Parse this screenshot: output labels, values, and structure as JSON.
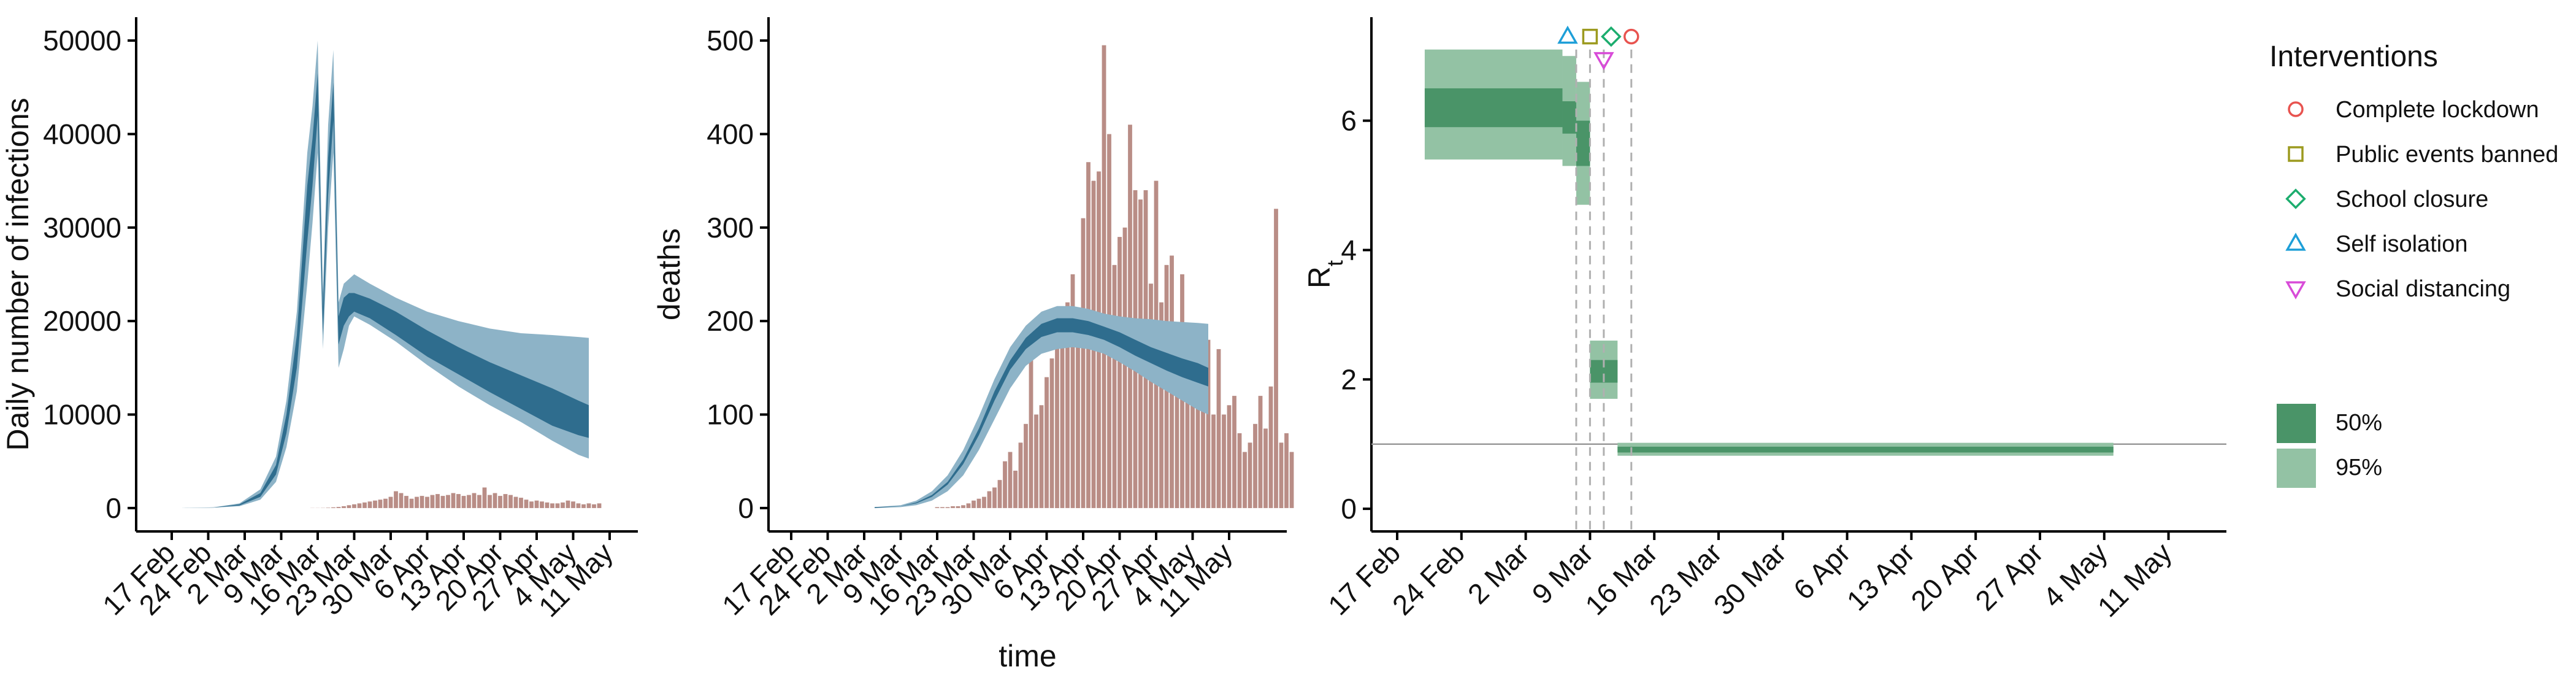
{
  "colors": {
    "infection_dark": "#2f6d8e",
    "infection_light": "#8db3c7",
    "bar": "#b98d86",
    "rt_dark": "#4a9468",
    "rt_light": "#93c2a4",
    "lockdown": "#e8534f",
    "events": "#9c9a1f",
    "school": "#1cad6e",
    "self": "#1e9fd8",
    "social": "#d84bd8",
    "axis": "#000000",
    "vline": "#b0b0b0",
    "hline": "#9a9a9a"
  },
  "chart_data": [
    {
      "type": "area",
      "ylabel": "Daily number of infections",
      "xlabel": "",
      "x_ticks": [
        "17 Feb",
        "24 Feb",
        "2 Mar",
        "9 Mar",
        "16 Mar",
        "23 Mar",
        "30 Mar",
        "6 Apr",
        "13 Apr",
        "20 Apr",
        "27 Apr",
        "4 May",
        "11 May"
      ],
      "y_ticks": [
        0,
        10000,
        20000,
        30000,
        40000,
        50000
      ],
      "ylim": [
        -2500,
        52500
      ],
      "x_start_day": 17,
      "series_band95": {
        "days": [
          19,
          25,
          30,
          34,
          37,
          39,
          41,
          43,
          44,
          45,
          46,
          47,
          48,
          49,
          50,
          51,
          52,
          55,
          60,
          66,
          72,
          78,
          84,
          90,
          95,
          97
        ],
        "lo": [
          10,
          40,
          200,
          900,
          2800,
          6500,
          12500,
          24000,
          30500,
          38000,
          17000,
          30000,
          38000,
          15000,
          17000,
          19500,
          20500,
          19600,
          17800,
          15300,
          13000,
          11000,
          9200,
          7200,
          5700,
          5300
        ],
        "hi": [
          20,
          80,
          500,
          2000,
          5500,
          11500,
          21000,
          38000,
          43000,
          50000,
          23000,
          41000,
          49000,
          22000,
          24000,
          24500,
          25000,
          24000,
          22500,
          21000,
          20000,
          19200,
          18700,
          18500,
          18300,
          18200
        ]
      },
      "series_band50": {
        "days": [
          19,
          25,
          30,
          34,
          37,
          39,
          41,
          43,
          44,
          45,
          46,
          47,
          48,
          49,
          50,
          51,
          52,
          55,
          60,
          66,
          72,
          78,
          84,
          90,
          95,
          97
        ],
        "lo": [
          12,
          50,
          280,
          1200,
          3600,
          8000,
          15000,
          28500,
          34500,
          42000,
          18500,
          33500,
          41500,
          17500,
          19500,
          20500,
          21000,
          20300,
          18500,
          16200,
          14300,
          12400,
          10600,
          8800,
          7800,
          7500
        ],
        "hi": [
          16,
          65,
          400,
          1600,
          4600,
          10000,
          18500,
          34500,
          39500,
          46500,
          21500,
          37500,
          45500,
          20500,
          22500,
          23000,
          23000,
          22400,
          21000,
          19000,
          17200,
          15600,
          14200,
          12800,
          11500,
          11000
        ]
      },
      "bars": [
        0,
        0,
        0,
        0,
        0,
        0,
        0,
        0,
        0,
        0,
        0,
        0,
        0,
        0,
        0,
        0,
        0,
        0,
        0,
        0,
        0,
        0,
        0,
        0,
        0,
        10,
        10,
        20,
        40,
        80,
        120,
        200,
        300,
        400,
        500,
        600,
        700,
        800,
        900,
        1000,
        1200,
        1800,
        1600,
        1300,
        1000,
        1200,
        1300,
        1200,
        1400,
        1500,
        1300,
        1400,
        1600,
        1500,
        1300,
        1400,
        1600,
        1400,
        2200,
        1400,
        1600,
        1300,
        1500,
        1400,
        1200,
        1100,
        900,
        700,
        800,
        700,
        600,
        500,
        500,
        600,
        800,
        700,
        500,
        400,
        500,
        400,
        500
      ],
      "bar_start_day": 19
    },
    {
      "type": "area",
      "ylabel": "deaths",
      "xlabel": "time",
      "x_ticks": [
        "17 Feb",
        "24 Feb",
        "2 Mar",
        "9 Mar",
        "16 Mar",
        "23 Mar",
        "30 Mar",
        "6 Apr",
        "13 Apr",
        "20 Apr",
        "27 Apr",
        "4 May",
        "11 May"
      ],
      "y_ticks": [
        0,
        100,
        200,
        300,
        400,
        500
      ],
      "ylim": [
        -25,
        525
      ],
      "x_start_day": 17,
      "series_band95": {
        "days": [
          33,
          38,
          41,
          44,
          47,
          50,
          53,
          56,
          59,
          62,
          65,
          68,
          71,
          74,
          77,
          80,
          83,
          86,
          89,
          92,
          95,
          97
        ],
        "lo": [
          0,
          1,
          3,
          8,
          18,
          35,
          62,
          95,
          128,
          152,
          165,
          170,
          172,
          170,
          165,
          156,
          146,
          135,
          125,
          115,
          105,
          100
        ],
        "hi": [
          1,
          3,
          8,
          18,
          35,
          62,
          98,
          138,
          172,
          195,
          210,
          216,
          216,
          213,
          208,
          205,
          203,
          202,
          200,
          199,
          198,
          197
        ]
      },
      "series_band50": {
        "days": [
          33,
          38,
          41,
          44,
          47,
          50,
          53,
          56,
          59,
          62,
          65,
          68,
          71,
          74,
          77,
          80,
          83,
          86,
          89,
          92,
          95,
          97
        ],
        "lo": [
          0,
          2,
          5,
          12,
          25,
          47,
          78,
          115,
          148,
          170,
          183,
          188,
          188,
          185,
          180,
          172,
          163,
          155,
          147,
          140,
          134,
          130
        ],
        "hi": [
          1,
          2,
          6,
          14,
          28,
          52,
          85,
          125,
          158,
          182,
          197,
          203,
          203,
          200,
          194,
          188,
          180,
          172,
          166,
          160,
          155,
          150
        ]
      },
      "bars": [
        0,
        0,
        0,
        0,
        0,
        0,
        0,
        0,
        0,
        0,
        0,
        0,
        0,
        0,
        0,
        0,
        0,
        0,
        0,
        0,
        0,
        0,
        0,
        0,
        0,
        0,
        1,
        1,
        1,
        2,
        2,
        3,
        5,
        8,
        10,
        12,
        18,
        22,
        30,
        50,
        60,
        40,
        70,
        90,
        190,
        100,
        110,
        140,
        160,
        180,
        190,
        220,
        250,
        180,
        310,
        370,
        350,
        360,
        495,
        400,
        260,
        290,
        300,
        410,
        340,
        330,
        340,
        240,
        350,
        220,
        260,
        270,
        180,
        250,
        160,
        110,
        130,
        140,
        180,
        100,
        170,
        100,
        110,
        120,
        80,
        60,
        70,
        90,
        120,
        85,
        130,
        320,
        70,
        80,
        60
      ]
    },
    {
      "type": "step-band",
      "ylabel": "R",
      "ylabel_sub": "t",
      "xlabel": "",
      "x_ticks": [
        "17 Feb",
        "24 Feb",
        "2 Mar",
        "9 Mar",
        "16 Mar",
        "23 Mar",
        "30 Mar",
        "6 Apr",
        "13 Apr",
        "20 Apr",
        "27 Apr",
        "4 May",
        "11 May"
      ],
      "y_ticks": [
        0,
        2,
        4,
        6
      ],
      "ylim": [
        -0.35,
        7.6
      ],
      "x_start_day": 17,
      "segments": [
        {
          "from": 20,
          "to": 35,
          "lo95": 5.4,
          "hi95": 7.1,
          "lo50": 5.9,
          "hi50": 6.5
        },
        {
          "from": 35,
          "to": 36.5,
          "lo95": 5.3,
          "hi95": 7.0,
          "lo50": 5.8,
          "hi50": 6.3
        },
        {
          "from": 36.5,
          "to": 38,
          "lo95": 4.7,
          "hi95": 6.6,
          "lo50": 5.3,
          "hi50": 6.0
        },
        {
          "from": 38,
          "to": 41,
          "lo95": 1.7,
          "hi95": 2.6,
          "lo50": 1.95,
          "hi50": 2.3
        },
        {
          "from": 41,
          "to": 95,
          "lo95": 0.82,
          "hi95": 1.02,
          "lo50": 0.87,
          "hi50": 0.96
        }
      ],
      "reference_line": 1,
      "interventions": [
        {
          "name": "Self isolation",
          "day": 36.5,
          "marker": "triangle-up",
          "color_key": "self",
          "level": 7.3
        },
        {
          "name": "Public events banned",
          "day": 38,
          "marker": "square",
          "color_key": "events",
          "level": 7.3
        },
        {
          "name": "School closure",
          "day": 39.5,
          "marker": "diamond",
          "color_key": "school",
          "level": 7.3
        },
        {
          "name": "Social distancing",
          "day": 39.5,
          "marker": "triangle-down",
          "color_key": "social",
          "level": 6.95
        },
        {
          "name": "Complete lockdown",
          "day": 42.5,
          "marker": "circle",
          "color_key": "lockdown",
          "level": 7.3
        }
      ]
    }
  ],
  "legend": {
    "interventions_title": "Interventions",
    "interventions": [
      {
        "label": "Complete lockdown",
        "marker": "circle",
        "color_key": "lockdown"
      },
      {
        "label": "Public events banned",
        "marker": "square",
        "color_key": "events"
      },
      {
        "label": "School closure",
        "marker": "diamond",
        "color_key": "school"
      },
      {
        "label": "Self isolation",
        "marker": "triangle-up",
        "color_key": "self"
      },
      {
        "label": "Social distancing",
        "marker": "triangle-down",
        "color_key": "social"
      }
    ],
    "ci": [
      {
        "label": "50%",
        "color_key": "rt_dark"
      },
      {
        "label": "95%",
        "color_key": "rt_light"
      }
    ]
  }
}
